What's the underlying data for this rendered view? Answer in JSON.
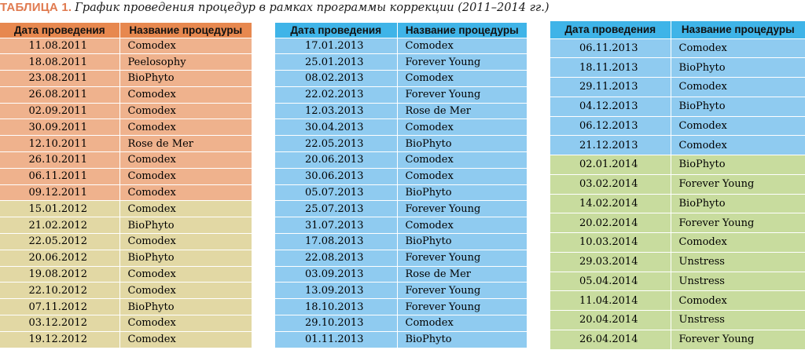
{
  "caption": {
    "label": "ТАБЛИЦА 1.",
    "title": "График проведения процедур в рамках программы коррекции (2011–2014 гг.)"
  },
  "colors": {
    "header_orange": "#e7884f",
    "row_orange": "#efb28d",
    "row_khaki": "#e2d8a4",
    "header_blue": "#3fb4e8",
    "row_blue": "#8fcbf0",
    "row_green": "#c8dc9e"
  },
  "headers": {
    "date": "Дата проведения",
    "procedure": "Название процедуры"
  },
  "tables": [
    {
      "rows": [
        {
          "date": "11.08.2011",
          "procedure": "Comodex",
          "color": "#efb28d"
        },
        {
          "date": "18.08.2011",
          "procedure": "Peelosophy",
          "color": "#efb28d"
        },
        {
          "date": "23.08.2011",
          "procedure": "BioPhyto",
          "color": "#efb28d"
        },
        {
          "date": "26.08.2011",
          "procedure": "Comodex",
          "color": "#efb28d"
        },
        {
          "date": "02.09.2011",
          "procedure": "Comodex",
          "color": "#efb28d"
        },
        {
          "date": "30.09.2011",
          "procedure": "Comodex",
          "color": "#efb28d"
        },
        {
          "date": "12.10.2011",
          "procedure": "Rose de Mer",
          "color": "#efb28d"
        },
        {
          "date": "26.10.2011",
          "procedure": "Comodex",
          "color": "#efb28d"
        },
        {
          "date": "06.11.2011",
          "procedure": "Comodex",
          "color": "#efb28d"
        },
        {
          "date": "09.12.2011",
          "procedure": "Comodex",
          "color": "#efb28d"
        },
        {
          "date": "15.01.2012",
          "procedure": "Comodex",
          "color": "#e2d8a4"
        },
        {
          "date": "21.02.2012",
          "procedure": "BioPhyto",
          "color": "#e2d8a4"
        },
        {
          "date": "22.05.2012",
          "procedure": "Comodex",
          "color": "#e2d8a4"
        },
        {
          "date": "20.06.2012",
          "procedure": "BioPhyto",
          "color": "#e2d8a4"
        },
        {
          "date": "19.08.2012",
          "procedure": "Comodex",
          "color": "#e2d8a4"
        },
        {
          "date": "22.10.2012",
          "procedure": "Comodex",
          "color": "#e2d8a4"
        },
        {
          "date": "07.11.2012",
          "procedure": "BioPhyto",
          "color": "#e2d8a4"
        },
        {
          "date": "03.12.2012",
          "procedure": "Comodex",
          "color": "#e2d8a4"
        },
        {
          "date": "19.12.2012",
          "procedure": "Comodex",
          "color": "#e2d8a4"
        }
      ]
    },
    {
      "rows": [
        {
          "date": "17.01.2013",
          "procedure": "Comodex",
          "color": "#8fcbf0"
        },
        {
          "date": "25.01.2013",
          "procedure": "Forever Young",
          "color": "#8fcbf0"
        },
        {
          "date": "08.02.2013",
          "procedure": "Comodex",
          "color": "#8fcbf0"
        },
        {
          "date": "22.02.2013",
          "procedure": "Forever Young",
          "color": "#8fcbf0"
        },
        {
          "date": "12.03.2013",
          "procedure": "Rose de Mer",
          "color": "#8fcbf0"
        },
        {
          "date": "30.04.2013",
          "procedure": "Comodex",
          "color": "#8fcbf0"
        },
        {
          "date": "22.05.2013",
          "procedure": "BioPhyto",
          "color": "#8fcbf0"
        },
        {
          "date": "20.06.2013",
          "procedure": "Comodex",
          "color": "#8fcbf0"
        },
        {
          "date": "30.06.2013",
          "procedure": "Comodex",
          "color": "#8fcbf0"
        },
        {
          "date": "05.07.2013",
          "procedure": "BioPhyto",
          "color": "#8fcbf0"
        },
        {
          "date": "25.07.2013",
          "procedure": "Forever Young",
          "color": "#8fcbf0"
        },
        {
          "date": "31.07.2013",
          "procedure": "Comodex",
          "color": "#8fcbf0"
        },
        {
          "date": "17.08.2013",
          "procedure": "BioPhyto",
          "color": "#8fcbf0"
        },
        {
          "date": "22.08.2013",
          "procedure": "Forever Young",
          "color": "#8fcbf0"
        },
        {
          "date": "03.09.2013",
          "procedure": "Rose de Mer",
          "color": "#8fcbf0"
        },
        {
          "date": "13.09.2013",
          "procedure": "Forever Young",
          "color": "#8fcbf0"
        },
        {
          "date": "18.10.2013",
          "procedure": "Forever Young",
          "color": "#8fcbf0"
        },
        {
          "date": "29.10.2013",
          "procedure": "Comodex",
          "color": "#8fcbf0"
        },
        {
          "date": "01.11.2013",
          "procedure": "BioPhyto",
          "color": "#8fcbf0"
        }
      ]
    },
    {
      "rows": [
        {
          "date": "06.11.2013",
          "procedure": "Comodex",
          "color": "#8fcbf0"
        },
        {
          "date": "18.11.2013",
          "procedure": "BioPhyto",
          "color": "#8fcbf0"
        },
        {
          "date": "29.11.2013",
          "procedure": "Comodex",
          "color": "#8fcbf0"
        },
        {
          "date": "04.12.2013",
          "procedure": "BioPhyto",
          "color": "#8fcbf0"
        },
        {
          "date": "06.12.2013",
          "procedure": "Comodex",
          "color": "#8fcbf0"
        },
        {
          "date": "21.12.2013",
          "procedure": "Comodex",
          "color": "#8fcbf0"
        },
        {
          "date": "02.01.2014",
          "procedure": "BioPhyto",
          "color": "#c8dc9e"
        },
        {
          "date": "03.02.2014",
          "procedure": "Forever Young",
          "color": "#c8dc9e"
        },
        {
          "date": "14.02.2014",
          "procedure": "BioPhyto",
          "color": "#c8dc9e"
        },
        {
          "date": "20.02.2014",
          "procedure": "Forever Young",
          "color": "#c8dc9e"
        },
        {
          "date": "10.03.2014",
          "procedure": "Comodex",
          "color": "#c8dc9e"
        },
        {
          "date": "29.03.2014",
          "procedure": "Unstress",
          "color": "#c8dc9e"
        },
        {
          "date": "05.04.2014",
          "procedure": "Unstress",
          "color": "#c8dc9e"
        },
        {
          "date": "11.04.2014",
          "procedure": "Comodex",
          "color": "#c8dc9e"
        },
        {
          "date": "20.04.2014",
          "procedure": "Unstress",
          "color": "#c8dc9e"
        },
        {
          "date": "26.04.2014",
          "procedure": "Forever Young",
          "color": "#c8dc9e"
        }
      ]
    }
  ]
}
